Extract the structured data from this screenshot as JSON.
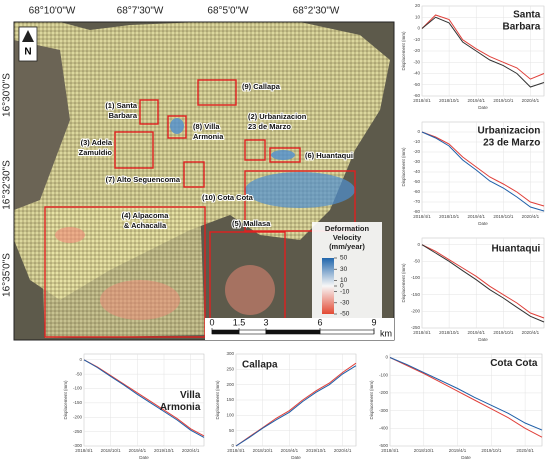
{
  "map": {
    "lon_labels": [
      "68°10'0\"W",
      "68°7'30\"W",
      "68°5'0\"W",
      "68°2'30\"W"
    ],
    "lat_labels": [
      "16°30'0\"S",
      "16°32'30\"S",
      "16°35'0\"S"
    ],
    "north": "N",
    "regions": [
      {
        "label": [
          "(9) Callapa"
        ]
      },
      {
        "label": [
          "(1) Santa",
          "Barbara"
        ]
      },
      {
        "label": [
          "(8) Villa",
          "Armonia"
        ]
      },
      {
        "label": [
          "(2) Urbanizacion",
          "23 de Marzo"
        ]
      },
      {
        "label": [
          "(3) Adela",
          "Zamuldio"
        ]
      },
      {
        "label": [
          "(6) Huantaqui"
        ]
      },
      {
        "label": [
          "(7) Alto Seguencoma"
        ]
      },
      {
        "label": [
          "(10) Cota Cota"
        ]
      },
      {
        "label": [
          "(4) Alpacoma",
          "& Achacalla"
        ]
      },
      {
        "label": [
          "(5) Mallasa"
        ]
      }
    ],
    "legend": {
      "title": [
        "Deformation",
        "Velocity",
        "(mm/year)"
      ],
      "lim": [
        -50,
        50
      ],
      "ticks": [
        50,
        30,
        10,
        0,
        -10,
        -30,
        -50
      ],
      "colors": [
        "#2166ac",
        "#f7f7f7",
        "#e34a33"
      ]
    },
    "scale_bar": {
      "lim": [
        0,
        9
      ],
      "ticks": [
        0,
        1.5,
        3,
        6,
        9
      ],
      "unit": "km"
    }
  },
  "chart_data": [
    {
      "type": "line",
      "title": [
        "Santa",
        "Barbara"
      ],
      "xlabel": "Date",
      "ylabel": "Displacement (mm)",
      "x": [
        "2018/4/1",
        null,
        "2018/10/1",
        null,
        "2019/4/1",
        null,
        "2019/10/1",
        null,
        "2020/4/1",
        null
      ],
      "ylim": [
        -60,
        20
      ],
      "yticks": [
        20,
        10,
        0,
        -10,
        -20,
        -30,
        -40,
        -50,
        -60
      ],
      "series": [
        {
          "color": "#e0403a",
          "values": [
            0,
            12,
            8,
            -10,
            -18,
            -25,
            -30,
            -35,
            -45,
            -40
          ]
        },
        {
          "color": "#333333",
          "values": [
            0,
            10,
            5,
            -12,
            -20,
            -28,
            -33,
            -40,
            -52,
            -48
          ]
        }
      ]
    },
    {
      "type": "line",
      "title": [
        "Urbanizacion",
        "23 de Marzo"
      ],
      "xlabel": "Date",
      "ylabel": "Displacement (mm)",
      "x": [
        "2018/4/1",
        null,
        "2018/10/1",
        null,
        "2019/4/1",
        null,
        "2019/10/1",
        null,
        "2020/4/1",
        null
      ],
      "ylim": [
        -80,
        10
      ],
      "yticks": [
        0,
        -10,
        -20,
        -30,
        -40,
        -50,
        -60,
        -70,
        -80
      ],
      "series": [
        {
          "color": "#e0403a",
          "values": [
            0,
            -5,
            -12,
            -25,
            -35,
            -45,
            -52,
            -60,
            -70,
            -74
          ]
        },
        {
          "color": "#1f5fa8",
          "values": [
            0,
            -6,
            -14,
            -28,
            -38,
            -49,
            -56,
            -65,
            -75,
            -79
          ]
        }
      ]
    },
    {
      "type": "line",
      "title": [
        "Huantaqui"
      ],
      "xlabel": "Date",
      "ylabel": "Displacement (mm)",
      "x": [
        "2018/4/1",
        null,
        "2018/10/1",
        null,
        "2019/4/1",
        null,
        "2019/10/1",
        null,
        "2020/4/1",
        null
      ],
      "ylim": [
        -250,
        20
      ],
      "yticks": [
        0,
        -50,
        -100,
        -150,
        -200,
        -250
      ],
      "series": [
        {
          "color": "#e0403a",
          "values": [
            0,
            -20,
            -45,
            -70,
            -95,
            -125,
            -150,
            -175,
            -205,
            -220
          ]
        },
        {
          "color": "#333333",
          "values": [
            0,
            -25,
            -50,
            -78,
            -105,
            -135,
            -160,
            -188,
            -215,
            -232
          ]
        }
      ]
    },
    {
      "type": "line",
      "title": [
        "Villa",
        "Armonia"
      ],
      "xlabel": "Date",
      "ylabel": "Displacement (mm)",
      "x": [
        "2018/4/1",
        null,
        "2018/10/1",
        null,
        "2019/4/1",
        null,
        "2019/10/1",
        null,
        "2020/4/1",
        null
      ],
      "ylim": [
        -300,
        20
      ],
      "yticks": [
        0,
        -50,
        -100,
        -150,
        -200,
        -250,
        -300
      ],
      "series": [
        {
          "color": "#e0403a",
          "values": [
            0,
            -25,
            -55,
            -85,
            -115,
            -145,
            -175,
            -205,
            -240,
            -265
          ]
        },
        {
          "color": "#1f5fa8",
          "values": [
            0,
            -27,
            -58,
            -88,
            -120,
            -150,
            -180,
            -210,
            -245,
            -270
          ]
        }
      ]
    },
    {
      "type": "line",
      "title": [
        "Callapa"
      ],
      "xlabel": "Date",
      "ylabel": "Displacement (mm)",
      "x": [
        "2018/4/1",
        null,
        "2018/10/1",
        null,
        "2019/4/1",
        null,
        "2019/10/1",
        null,
        "2020/4/1",
        null
      ],
      "ylim": [
        0,
        300
      ],
      "yticks": [
        300,
        250,
        200,
        150,
        100,
        50,
        0
      ],
      "series": [
        {
          "color": "#e0403a",
          "values": [
            0,
            30,
            60,
            90,
            115,
            150,
            180,
            205,
            240,
            270
          ]
        },
        {
          "color": "#1f5fa8",
          "values": [
            0,
            28,
            58,
            85,
            110,
            145,
            175,
            200,
            235,
            262
          ]
        }
      ]
    },
    {
      "type": "line",
      "title": [
        "Cota Cota"
      ],
      "xlabel": "Date",
      "ylabel": "Displacement (mm)",
      "x": [
        "2018/4/1",
        null,
        "2018/10/1",
        null,
        "2019/4/1",
        null,
        "2019/10/1",
        null,
        "2020/4/1",
        null
      ],
      "ylim": [
        -500,
        20
      ],
      "yticks": [
        0,
        -100,
        -200,
        -300,
        -400,
        -500
      ],
      "series": [
        {
          "color": "#e0403a",
          "values": [
            0,
            -45,
            -90,
            -140,
            -190,
            -240,
            -290,
            -340,
            -400,
            -450
          ]
        },
        {
          "color": "#1f5fa8",
          "values": [
            0,
            -40,
            -85,
            -130,
            -175,
            -225,
            -270,
            -315,
            -370,
            -410
          ]
        }
      ]
    }
  ]
}
